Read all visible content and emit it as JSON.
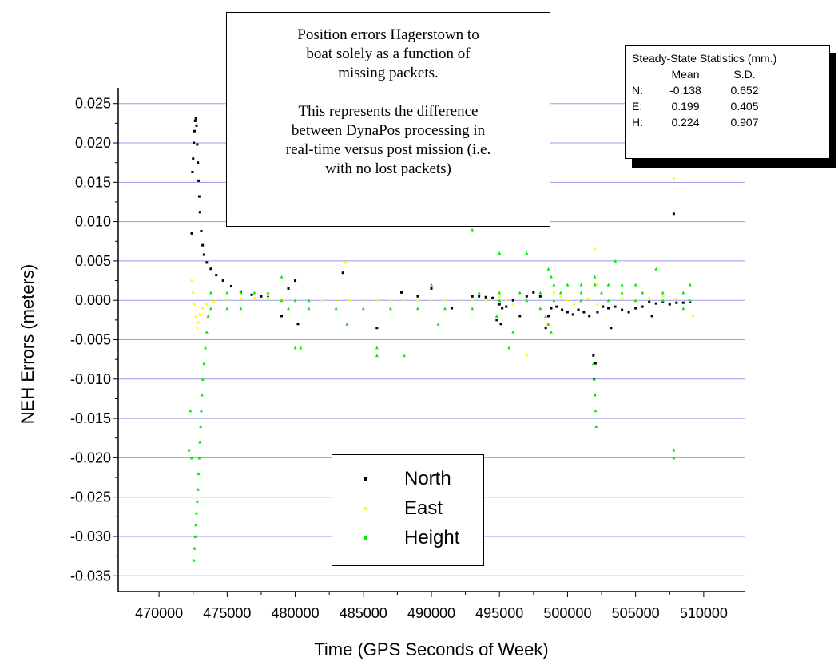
{
  "chart_data": {
    "type": "scatter",
    "xlabel": "Time (GPS Seconds of Week)",
    "ylabel": "NEH Errors (meters)",
    "xlim": [
      467000,
      513000
    ],
    "ylim": [
      -0.037,
      0.027
    ],
    "xticks": [
      470000,
      475000,
      480000,
      485000,
      490000,
      495000,
      500000,
      505000,
      510000
    ],
    "xtick_labels": [
      "470000",
      "475000",
      "480000",
      "485000",
      "490000",
      "495000",
      "500000",
      "505000",
      "510000"
    ],
    "yticks": [
      0.025,
      0.02,
      0.015,
      0.01,
      0.005,
      0.0,
      -0.005,
      -0.01,
      -0.015,
      -0.02,
      -0.025,
      -0.03,
      -0.035
    ],
    "ytick_labels": [
      "0.025",
      "0.020",
      "0.015",
      "0.010",
      "0.005",
      "0.000",
      "-0.005",
      "-0.010",
      "-0.015",
      "-0.020",
      "-0.025",
      "-0.030",
      "-0.035"
    ],
    "grid": true,
    "grid_color": "#9999ee",
    "legend_position": "bottom-center",
    "series": [
      {
        "name": "North",
        "color": "#000000",
        "marker": "square",
        "points": [
          [
            472450,
            0.0163
          ],
          [
            472500,
            0.018
          ],
          [
            472550,
            0.02
          ],
          [
            472600,
            0.0215
          ],
          [
            472650,
            0.0228
          ],
          [
            472700,
            0.0231
          ],
          [
            472750,
            0.0222
          ],
          [
            472800,
            0.0198
          ],
          [
            472850,
            0.0175
          ],
          [
            472900,
            0.0152
          ],
          [
            472950,
            0.0132
          ],
          [
            473000,
            0.0112
          ],
          [
            473100,
            0.0088
          ],
          [
            473200,
            0.007
          ],
          [
            473300,
            0.0058
          ],
          [
            473500,
            0.0048
          ],
          [
            473800,
            0.004
          ],
          [
            474200,
            0.0032
          ],
          [
            474700,
            0.0025
          ],
          [
            475300,
            0.0018
          ],
          [
            476000,
            0.0011
          ],
          [
            476800,
            0.0007
          ],
          [
            477500,
            0.0005
          ],
          [
            478000,
            0.0004
          ],
          [
            472400,
            0.0085
          ],
          [
            479000,
            -0.002
          ],
          [
            479500,
            0.0015
          ],
          [
            480000,
            0.0025
          ],
          [
            480200,
            -0.003
          ],
          [
            483500,
            0.0035
          ],
          [
            486000,
            -0.0035
          ],
          [
            487800,
            0.001
          ],
          [
            489000,
            0.0005
          ],
          [
            490000,
            0.0015
          ],
          [
            491500,
            -0.001
          ],
          [
            493000,
            0.0005
          ],
          [
            493500,
            0.0005
          ],
          [
            494000,
            0.0004
          ],
          [
            494500,
            0.0003
          ],
          [
            495000,
            -0.0005
          ],
          [
            495200,
            -0.001
          ],
          [
            495500,
            -0.0008
          ],
          [
            496000,
            0.0
          ],
          [
            496500,
            -0.002
          ],
          [
            497000,
            0.0005
          ],
          [
            497500,
            0.001
          ],
          [
            498000,
            0.0005
          ],
          [
            498400,
            -0.0035
          ],
          [
            498600,
            -0.002
          ],
          [
            498800,
            -0.001
          ],
          [
            499200,
            -0.0008
          ],
          [
            499600,
            -0.0012
          ],
          [
            500000,
            -0.0015
          ],
          [
            500400,
            -0.0018
          ],
          [
            500800,
            -0.0012
          ],
          [
            501200,
            -0.0015
          ],
          [
            501600,
            -0.002
          ],
          [
            501900,
            -0.007
          ],
          [
            501950,
            -0.01
          ],
          [
            502000,
            -0.012
          ],
          [
            502050,
            -0.008
          ],
          [
            502200,
            -0.0015
          ],
          [
            502600,
            -0.0008
          ],
          [
            503000,
            -0.001
          ],
          [
            503500,
            -0.0008
          ],
          [
            504000,
            -0.0012
          ],
          [
            504500,
            -0.0015
          ],
          [
            505000,
            -0.001
          ],
          [
            505500,
            -0.0008
          ],
          [
            506000,
            -0.0002
          ],
          [
            506500,
            -0.0004
          ],
          [
            507000,
            -0.0002
          ],
          [
            507500,
            -0.0005
          ],
          [
            508000,
            -0.0003
          ],
          [
            508500,
            -0.0003
          ],
          [
            509000,
            -0.0002
          ],
          [
            494800,
            -0.0025
          ],
          [
            495100,
            -0.003
          ],
          [
            503200,
            -0.0035
          ],
          [
            506200,
            -0.002
          ],
          [
            507800,
            0.011
          ]
        ]
      },
      {
        "name": "East",
        "color": "#ffff00",
        "marker": "square",
        "points": [
          [
            472400,
            0.0025
          ],
          [
            472500,
            0.001
          ],
          [
            472600,
            -0.0005
          ],
          [
            472700,
            -0.002
          ],
          [
            472800,
            -0.0035
          ],
          [
            472900,
            -0.0028
          ],
          [
            473000,
            -0.0018
          ],
          [
            473200,
            -0.001
          ],
          [
            473500,
            -0.0005
          ],
          [
            474000,
            -0.0002
          ],
          [
            475000,
            0.0
          ],
          [
            476000,
            0.0002
          ],
          [
            477000,
            0.0003
          ],
          [
            478000,
            0.0003
          ],
          [
            479000,
            0.0001
          ],
          [
            480000,
            0.0
          ],
          [
            481000,
            0.0
          ],
          [
            482000,
            0.0
          ],
          [
            483000,
            0.0
          ],
          [
            483700,
            0.0048
          ],
          [
            484000,
            0.0
          ],
          [
            485000,
            0.0
          ],
          [
            486000,
            0.0
          ],
          [
            487000,
            0.0
          ],
          [
            488000,
            0.0
          ],
          [
            489000,
            0.0
          ],
          [
            490000,
            0.0
          ],
          [
            491000,
            0.0
          ],
          [
            492000,
            0.0
          ],
          [
            493000,
            0.0
          ],
          [
            494000,
            0.0
          ],
          [
            495000,
            0.0005
          ],
          [
            495500,
            0.0
          ],
          [
            496000,
            -0.0005
          ],
          [
            497000,
            -0.007
          ],
          [
            498000,
            -0.001
          ],
          [
            498500,
            -0.003
          ],
          [
            499000,
            0.001
          ],
          [
            499500,
            0.0005
          ],
          [
            500000,
            0.0
          ],
          [
            500500,
            -0.0005
          ],
          [
            501000,
            0.0
          ],
          [
            501500,
            0.0002
          ],
          [
            502000,
            0.0065
          ],
          [
            502100,
            0.002
          ],
          [
            502200,
            -0.0005
          ],
          [
            503000,
            0.0
          ],
          [
            504000,
            0.0002
          ],
          [
            505000,
            0.0
          ],
          [
            506000,
            0.0003
          ],
          [
            507000,
            0.0005
          ],
          [
            507800,
            0.0155
          ],
          [
            508000,
            0.0002
          ],
          [
            509000,
            0.0
          ],
          [
            509200,
            -0.002
          ]
        ]
      },
      {
        "name": "Height",
        "color": "#00ee00",
        "marker": "triangle",
        "points": [
          [
            472550,
            -0.033
          ],
          [
            472600,
            -0.0315
          ],
          [
            472650,
            -0.03
          ],
          [
            472700,
            -0.0285
          ],
          [
            472750,
            -0.027
          ],
          [
            472800,
            -0.0255
          ],
          [
            472850,
            -0.024
          ],
          [
            472900,
            -0.022
          ],
          [
            472950,
            -0.02
          ],
          [
            473000,
            -0.018
          ],
          [
            473050,
            -0.016
          ],
          [
            473100,
            -0.014
          ],
          [
            473150,
            -0.012
          ],
          [
            473200,
            -0.01
          ],
          [
            473300,
            -0.008
          ],
          [
            473400,
            -0.006
          ],
          [
            473500,
            -0.004
          ],
          [
            473600,
            -0.002
          ],
          [
            472300,
            -0.014
          ],
          [
            472200,
            -0.019
          ],
          [
            472400,
            -0.02
          ],
          [
            473800,
            0.001
          ],
          [
            475000,
            0.001
          ],
          [
            476000,
            0.001
          ],
          [
            477000,
            0.001
          ],
          [
            478000,
            0.001
          ],
          [
            479000,
            0.0
          ],
          [
            480000,
            0.0
          ],
          [
            481000,
            0.0
          ],
          [
            473800,
            -0.001
          ],
          [
            475000,
            -0.001
          ],
          [
            476000,
            -0.001
          ],
          [
            479500,
            -0.001
          ],
          [
            481000,
            -0.001
          ],
          [
            483000,
            -0.001
          ],
          [
            485000,
            -0.001
          ],
          [
            487000,
            -0.001
          ],
          [
            489000,
            -0.001
          ],
          [
            491000,
            -0.001
          ],
          [
            493000,
            -0.001
          ],
          [
            479000,
            0.003
          ],
          [
            480000,
            -0.006
          ],
          [
            480400,
            -0.006
          ],
          [
            483800,
            -0.003
          ],
          [
            486000,
            -0.006
          ],
          [
            486000,
            -0.007
          ],
          [
            488000,
            -0.007
          ],
          [
            490000,
            0.002
          ],
          [
            490500,
            -0.003
          ],
          [
            493000,
            0.009
          ],
          [
            493500,
            0.001
          ],
          [
            495000,
            0.001
          ],
          [
            496500,
            0.001
          ],
          [
            498000,
            0.001
          ],
          [
            499500,
            0.001
          ],
          [
            501000,
            0.001
          ],
          [
            502500,
            0.001
          ],
          [
            504000,
            0.001
          ],
          [
            505500,
            0.001
          ],
          [
            507000,
            0.001
          ],
          [
            508500,
            0.001
          ],
          [
            495000,
            0.0
          ],
          [
            497000,
            0.0
          ],
          [
            499000,
            0.0
          ],
          [
            501000,
            0.0
          ],
          [
            503000,
            0.0
          ],
          [
            505000,
            0.0
          ],
          [
            507000,
            0.0
          ],
          [
            509000,
            0.0
          ],
          [
            500000,
            0.002
          ],
          [
            501000,
            0.002
          ],
          [
            502000,
            0.002
          ],
          [
            503000,
            0.002
          ],
          [
            504000,
            0.002
          ],
          [
            505000,
            0.002
          ],
          [
            498600,
            0.004
          ],
          [
            498800,
            0.003
          ],
          [
            499000,
            0.002
          ],
          [
            498400,
            -0.002
          ],
          [
            498600,
            -0.003
          ],
          [
            498800,
            -0.004
          ],
          [
            495000,
            0.006
          ],
          [
            495700,
            -0.006
          ],
          [
            496000,
            -0.004
          ],
          [
            497000,
            0.006
          ],
          [
            498000,
            -0.001
          ],
          [
            494800,
            -0.002
          ],
          [
            501900,
            -0.008
          ],
          [
            501950,
            -0.01
          ],
          [
            502000,
            -0.012
          ],
          [
            502050,
            -0.014
          ],
          [
            502100,
            -0.016
          ],
          [
            502000,
            0.003
          ],
          [
            503500,
            0.005
          ],
          [
            506500,
            0.004
          ],
          [
            507800,
            -0.019
          ],
          [
            507800,
            -0.02
          ],
          [
            509000,
            0.002
          ],
          [
            508500,
            -0.001
          ]
        ]
      }
    ]
  },
  "annotation": {
    "line1": "Position errors Hagerstown to\nboat solely as a function of\nmissing packets.",
    "line2": "This represents the difference\nbetween DynaPos processing in\nreal-time versus post mission (i.e.\nwith no lost packets)"
  },
  "stats": {
    "title": "Steady-State Statistics (mm.)",
    "header_mean": "Mean",
    "header_sd": "S.D.",
    "rows": [
      {
        "label": "N:",
        "mean": "-0.138",
        "sd": "0.652"
      },
      {
        "label": "E:",
        "mean": "0.199",
        "sd": "0.405"
      },
      {
        "label": "H:",
        "mean": "0.224",
        "sd": "0.907"
      }
    ]
  },
  "legend": {
    "items": [
      {
        "label": "North",
        "color": "#000000"
      },
      {
        "label": "East",
        "color": "#ffff00"
      },
      {
        "label": "Height",
        "color": "#00ee00"
      }
    ]
  }
}
